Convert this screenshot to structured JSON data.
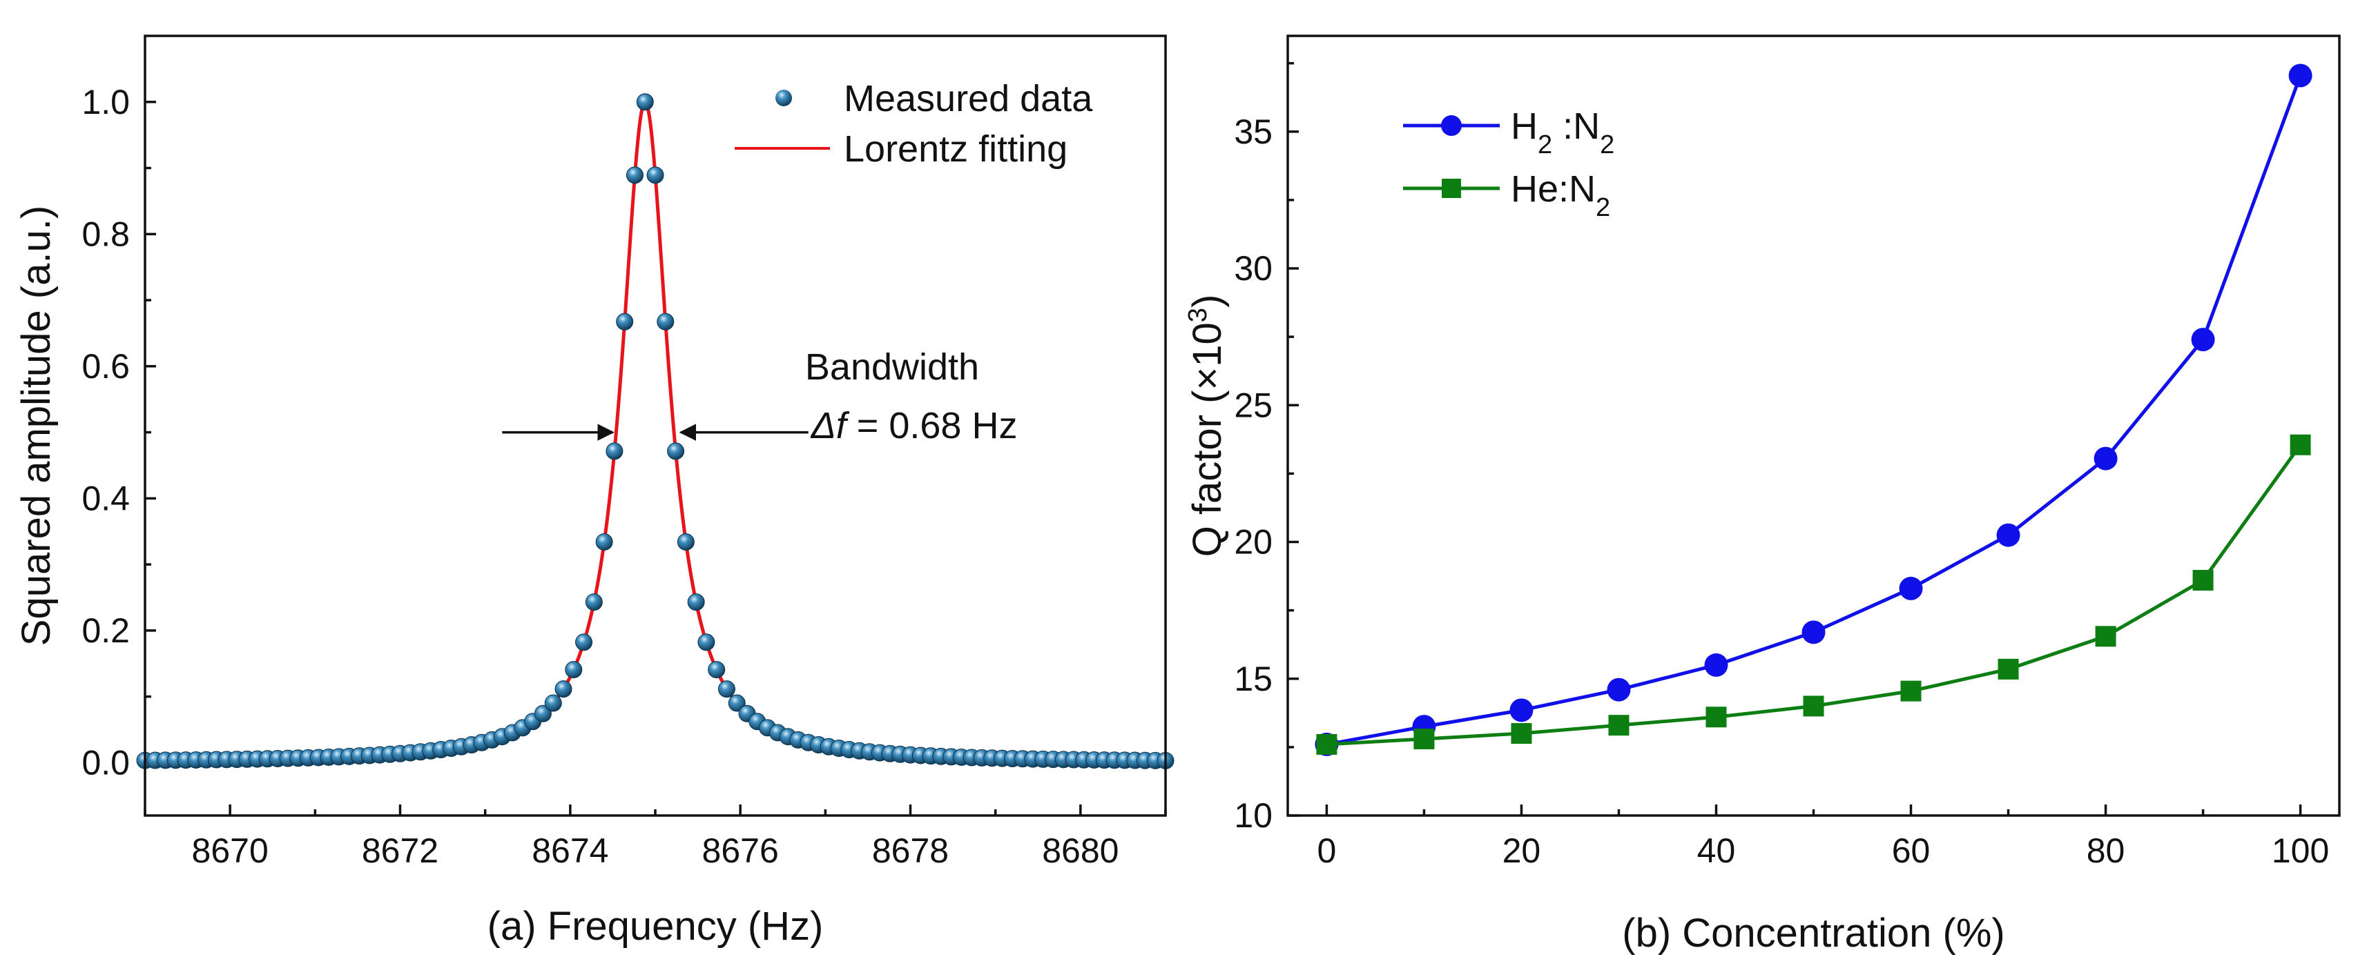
{
  "chart_data": [
    {
      "id": "a",
      "type": "scatter",
      "xlabel": "(a) Frequency (Hz)",
      "ylabel": "Squared amplitude (a.u.)",
      "xlim": [
        8669,
        8681
      ],
      "ylim": [
        -0.08,
        1.1
      ],
      "xticks": [
        8670,
        8672,
        8674,
        8676,
        8678,
        8680
      ],
      "xtick_labels": [
        "8670",
        "8672",
        "8674",
        "8676",
        "8678",
        "8680"
      ],
      "yticks": [
        0.0,
        0.2,
        0.4,
        0.6,
        0.8,
        1.0
      ],
      "ytick_labels": [
        "0.0",
        "0.2",
        "0.4",
        "0.6",
        "0.8",
        "1.0"
      ],
      "grid": false,
      "legend_position": "top-right",
      "series": [
        {
          "name": "Measured data",
          "kind": "points",
          "color": "#1f5f8b",
          "x_start": 8669,
          "x_end": 8681,
          "x_step": 0.12,
          "model": {
            "center": 8674.88,
            "fwhm": 0.68,
            "peak": 1.0,
            "offset": 0.0
          }
        },
        {
          "name": "Lorentz fitting",
          "kind": "line",
          "color": "#e8141b",
          "x_start": 8669,
          "x_end": 8681,
          "model": {
            "center": 8674.88,
            "fwhm": 0.68,
            "peak": 1.0,
            "offset": 0.0
          }
        }
      ],
      "annotation": {
        "title": "Bandwidth",
        "delta_symbol": "Δf",
        "value_text": " = 0.68 Hz",
        "arrow_y": 0.5,
        "left_arrow_x": [
          8673.2,
          8674.5
        ],
        "right_arrow_x": [
          8676.8,
          8675.3
        ]
      }
    },
    {
      "id": "b",
      "type": "line",
      "xlabel": "(b) Concentration (%)",
      "ylabel_main": "Q factor (×10",
      "ylabel_sup": "3",
      "ylabel_end": ")",
      "xlim": [
        -4,
        104
      ],
      "ylim": [
        10,
        38.5
      ],
      "xticks": [
        0,
        20,
        40,
        60,
        80,
        100
      ],
      "xtick_labels": [
        "0",
        "20",
        "40",
        "60",
        "80",
        "100"
      ],
      "yticks": [
        10,
        15,
        20,
        25,
        30,
        35
      ],
      "ytick_labels": [
        "10",
        "15",
        "20",
        "25",
        "30",
        "35"
      ],
      "grid": false,
      "legend_position": "top-left",
      "x": [
        0,
        10,
        20,
        30,
        40,
        50,
        60,
        70,
        80,
        90,
        100
      ],
      "series": [
        {
          "name": "H2:N2",
          "label_main": "H",
          "label_sub1": "2",
          "label_mid": " :N",
          "label_sub2": "2",
          "marker": "circle",
          "color": "#1010e8",
          "values": [
            12.6,
            13.25,
            13.85,
            14.6,
            15.5,
            16.7,
            18.3,
            20.25,
            23.05,
            27.4,
            37.05
          ]
        },
        {
          "name": "He:N2",
          "label_main": "He:N",
          "label_sub1": "2",
          "label_mid": "",
          "label_sub2": "",
          "marker": "square",
          "color": "#0d7e12",
          "values": [
            12.6,
            12.8,
            13.0,
            13.3,
            13.6,
            14.0,
            14.55,
            15.35,
            16.55,
            18.6,
            23.55
          ]
        }
      ]
    }
  ]
}
